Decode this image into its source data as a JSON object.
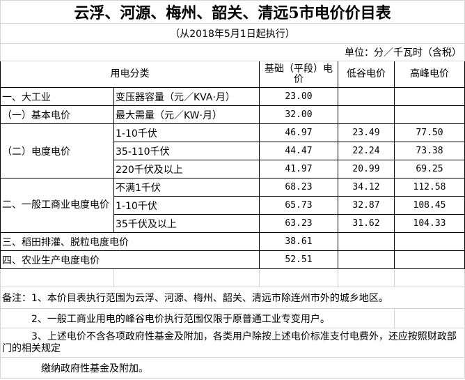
{
  "title": "云浮、河源、梅州、韶关、清远5市电价价目表",
  "subtitle": "（从2018年5月1日起执行）",
  "unit": "单位：分／千瓦时（含税）",
  "headers": {
    "category": "用电分类",
    "base": "基础（平段）电价",
    "valley": "低谷电价",
    "peak": "高峰电价"
  },
  "groups": {
    "large_industry": "一、大工业",
    "basic_price": "（一）基本电价",
    "energy_price": "（二）电度电价",
    "general_commercial": "二、一般工商业电度电价",
    "irrigation": "三、稻田排灌、脱粒电度电价",
    "agriculture": "四、农业生产电度电价"
  },
  "rows": [
    {
      "item": "变压器容量（元／KVA·月）",
      "base": "23.00",
      "valley": "",
      "peak": ""
    },
    {
      "item": "最大需量（元／KW·月）",
      "base": "32.00",
      "valley": "",
      "peak": ""
    },
    {
      "item": "1-10千伏",
      "base": "46.97",
      "valley": "23.49",
      "peak": "77.50"
    },
    {
      "item": "35-110千伏",
      "base": "44.47",
      "valley": "22.24",
      "peak": "73.38"
    },
    {
      "item": "220千伏及以上",
      "base": "41.97",
      "valley": "20.99",
      "peak": "69.25"
    },
    {
      "item": "不满1千伏",
      "base": "68.23",
      "valley": "34.12",
      "peak": "112.58"
    },
    {
      "item": "1-10千伏",
      "base": "65.73",
      "valley": "32.87",
      "peak": "108.45"
    },
    {
      "item": "35千伏及以上",
      "base": "63.23",
      "valley": "31.62",
      "peak": "104.33"
    },
    {
      "item": "",
      "base": "38.61",
      "valley": "",
      "peak": ""
    },
    {
      "item": "",
      "base": "52.51",
      "valley": "",
      "peak": ""
    }
  ],
  "notes": [
    "备注：1、本价目表执行范围为云浮、河源、梅州、韶关、清远市除连州市外的城乡地区。",
    "　　　2、一般工商业用电的峰谷电价执行范围仅限于原普通工业专变用户。",
    "　　　3、上述电价不含各项政府性基金及附加，各类用户除按上述电价标准支付电费外，还应按照财政部门的相关规定",
    "　　　　缴纳政府性基金及附加。"
  ]
}
